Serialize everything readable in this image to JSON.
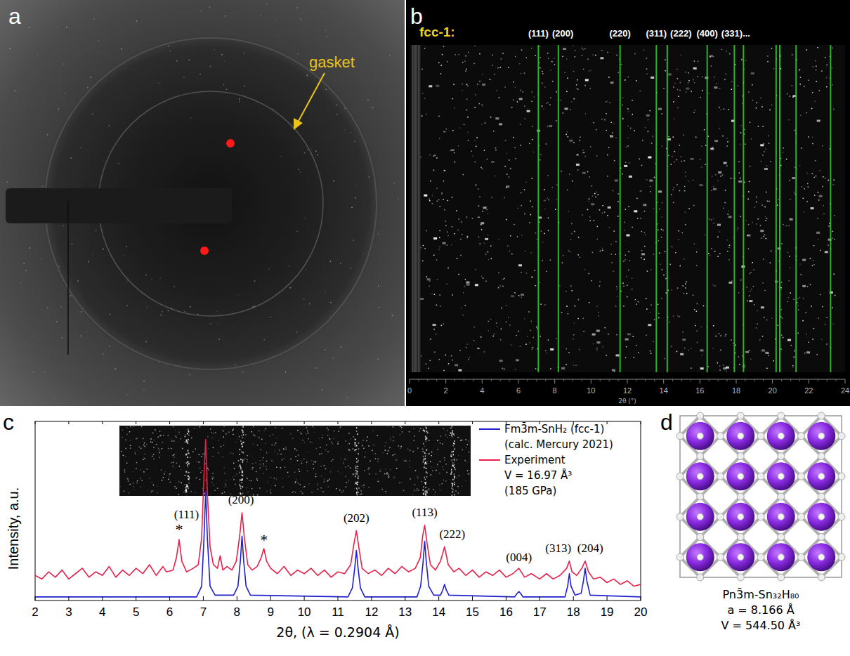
{
  "panel_a": {
    "letter": "a",
    "label": "gasket"
  },
  "chart_data": [
    {
      "type": "reflections",
      "letter": "b",
      "title": "fcc-1:",
      "xlabel": "2θ (°)",
      "xlim": [
        0,
        24
      ],
      "xticks": [
        0,
        2,
        4,
        6,
        8,
        10,
        12,
        14,
        16,
        18,
        20,
        22,
        24
      ],
      "tick_labels": "x",
      "color": "#2fd52f",
      "x": [
        7.1,
        8.2,
        11.6,
        13.6,
        14.2,
        16.4,
        17.9,
        18.4,
        20.2,
        20.4,
        21.3,
        23.2
      ],
      "labels": [
        "(111)",
        "(200)",
        "(220)",
        "(311)",
        "(222)",
        "(400)",
        "(331)...",
        null,
        null,
        null,
        null,
        null
      ]
    },
    {
      "type": "line",
      "letter": "c",
      "xlabel": "2θ, (λ = 0.2904 Å)",
      "ylabel": "Intensity, a.u.",
      "xlim": [
        2,
        20
      ],
      "xticks": [
        2,
        3,
        4,
        5,
        6,
        7,
        8,
        9,
        10,
        11,
        12,
        13,
        14,
        15,
        16,
        17,
        18,
        19,
        20
      ],
      "ylim": [
        0,
        100
      ],
      "tick_labels": "x",
      "legend": "upper right",
      "series": [
        {
          "name": "Fm3̄m-SnH₂ (fcc-1)",
          "color": "#1f1fd0",
          "legend_notes": [
            "(calc. Mercury 2021)"
          ],
          "x": [
            2.0,
            6.8,
            6.95,
            7.02,
            7.07,
            7.12,
            7.2,
            7.35,
            7.9,
            8.03,
            8.1,
            8.15,
            8.2,
            8.27,
            8.4,
            11.3,
            11.43,
            11.5,
            11.55,
            11.6,
            11.67,
            11.8,
            13.35,
            13.46,
            13.53,
            13.58,
            13.63,
            13.7,
            13.85,
            14.05,
            14.12,
            14.17,
            14.22,
            14.3,
            16.25,
            16.33,
            16.38,
            16.43,
            16.5,
            17.75,
            17.83,
            17.88,
            17.93,
            18.05,
            18.23,
            18.3,
            18.35,
            18.4,
            18.5,
            20.0
          ],
          "values": [
            2,
            2,
            8,
            35,
            61,
            35,
            8,
            3,
            3,
            8,
            22,
            36,
            22,
            8,
            3,
            2,
            7,
            18,
            28,
            18,
            7,
            2,
            2,
            8,
            21,
            33,
            21,
            8,
            3,
            3,
            6,
            9,
            6,
            3,
            2,
            4,
            5,
            4,
            2,
            2,
            8,
            15,
            8,
            3,
            4,
            11,
            18,
            11,
            3,
            2
          ]
        },
        {
          "name": "Experiment",
          "color": "#e8214a",
          "legend_notes": [
            "V = 16.97 Å³",
            "(185 GPa)"
          ],
          "x": [
            2.0,
            2.2,
            2.4,
            2.6,
            2.8,
            3.0,
            3.2,
            3.4,
            3.6,
            3.8,
            4.0,
            4.2,
            4.4,
            4.6,
            4.8,
            5.0,
            5.2,
            5.4,
            5.6,
            5.8,
            5.9,
            6.1,
            6.2,
            6.28,
            6.36,
            6.5,
            6.7,
            6.85,
            6.95,
            7.02,
            7.07,
            7.12,
            7.2,
            7.3,
            7.42,
            7.5,
            7.58,
            7.7,
            7.85,
            7.98,
            8.08,
            8.15,
            8.22,
            8.32,
            8.45,
            8.6,
            8.72,
            8.8,
            8.88,
            9.0,
            9.2,
            9.4,
            9.6,
            9.8,
            10.0,
            10.2,
            10.4,
            10.6,
            10.8,
            11.0,
            11.2,
            11.38,
            11.48,
            11.55,
            11.62,
            11.72,
            11.9,
            12.1,
            12.3,
            12.5,
            12.7,
            12.9,
            13.1,
            13.3,
            13.45,
            13.52,
            13.58,
            13.65,
            13.75,
            13.9,
            14.05,
            14.17,
            14.28,
            14.45,
            14.6,
            14.8,
            15.0,
            15.2,
            15.4,
            15.6,
            15.8,
            16.0,
            16.2,
            16.38,
            16.55,
            16.75,
            17.0,
            17.2,
            17.4,
            17.6,
            17.8,
            17.88,
            17.96,
            18.1,
            18.25,
            18.35,
            18.45,
            18.6,
            18.8,
            19.0,
            19.2,
            19.4,
            19.6,
            19.8,
            20.0
          ],
          "values": [
            14,
            12,
            16,
            13,
            17,
            12,
            15,
            18,
            13,
            16,
            14,
            19,
            13,
            17,
            14,
            18,
            15,
            20,
            14,
            19,
            16,
            17,
            24,
            34,
            22,
            16,
            18,
            20,
            35,
            70,
            90,
            60,
            30,
            20,
            18,
            25,
            17,
            19,
            17,
            22,
            36,
            49,
            35,
            20,
            17,
            19,
            24,
            29,
            22,
            18,
            15,
            19,
            14,
            17,
            15,
            18,
            14,
            17,
            13,
            16,
            15,
            20,
            32,
            39,
            30,
            18,
            15,
            17,
            14,
            18,
            15,
            19,
            16,
            18,
            24,
            36,
            42,
            32,
            20,
            17,
            22,
            30,
            20,
            16,
            18,
            14,
            17,
            13,
            16,
            14,
            17,
            13,
            15,
            18,
            13,
            15,
            12,
            15,
            12,
            14,
            18,
            22,
            16,
            14,
            18,
            22,
            16,
            12,
            13,
            10,
            12,
            9,
            11,
            8,
            9
          ]
        }
      ],
      "annotations": [
        {
          "text": "*",
          "x": 6.28,
          "y": 37
        },
        {
          "text": "(111)",
          "x": 6.5,
          "y": 46
        },
        {
          "text": "(200)",
          "x": 8.12,
          "y": 54
        },
        {
          "text": "*",
          "x": 8.8,
          "y": 31
        },
        {
          "text": "(202)",
          "x": 11.55,
          "y": 44
        },
        {
          "text": "(113)",
          "x": 13.58,
          "y": 47
        },
        {
          "text": "(222)",
          "x": 14.4,
          "y": 35
        },
        {
          "text": "(004)",
          "x": 16.38,
          "y": 22
        },
        {
          "text": "(313)",
          "x": 17.55,
          "y": 27
        },
        {
          "text": "(204)",
          "x": 18.5,
          "y": 27
        }
      ]
    }
  ],
  "panel_d": {
    "letter": "d",
    "formula": "Pn3̄m-Sn₃₂H₈₀",
    "lattice": "a =  8.166 Å",
    "volume": "V = 544.50 Å³"
  }
}
